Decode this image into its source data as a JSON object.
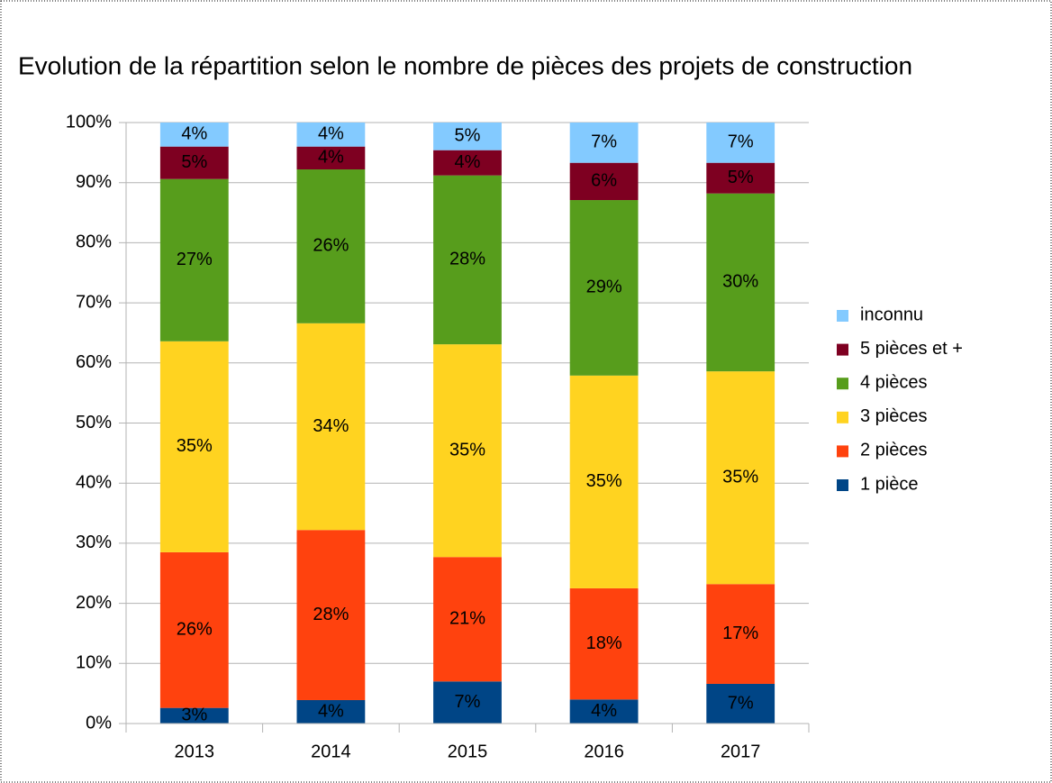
{
  "chart_data": {
    "type": "stacked_bar",
    "title": "Evolution de la répartition selon le nombre de pièces des projets de construction",
    "categories": [
      "2013",
      "2014",
      "2015",
      "2016",
      "2017"
    ],
    "series": [
      {
        "name": "1 pièce",
        "color": "#004586",
        "values": [
          2.6,
          3.9,
          7.0,
          4.0,
          6.6
        ],
        "value_labels": [
          "3%",
          "4%",
          "7%",
          "4%",
          "7%"
        ]
      },
      {
        "name": "2 pièces",
        "color": "#ff420e",
        "values": [
          25.9,
          28.3,
          20.7,
          18.5,
          16.6
        ],
        "value_labels": [
          "26%",
          "28%",
          "21%",
          "18%",
          "17%"
        ]
      },
      {
        "name": "3 pièces",
        "color": "#ffd320",
        "values": [
          35.1,
          34.4,
          35.4,
          35.4,
          35.4
        ],
        "value_labels": [
          "35%",
          "34%",
          "35%",
          "35%",
          "35%"
        ]
      },
      {
        "name": "4 pièces",
        "color": "#579d1c",
        "values": [
          27.0,
          25.6,
          28.1,
          29.2,
          29.6
        ],
        "value_labels": [
          "27%",
          "26%",
          "28%",
          "29%",
          "30%"
        ]
      },
      {
        "name": "5 pièces et +",
        "color": "#7e0021",
        "values": [
          5.4,
          3.8,
          4.2,
          6.2,
          5.1
        ],
        "value_labels": [
          "5%",
          "4%",
          "4%",
          "6%",
          "5%"
        ]
      },
      {
        "name": "inconnu",
        "color": "#83caff",
        "values": [
          4.0,
          4.0,
          4.6,
          6.7,
          6.7
        ],
        "value_labels": [
          "4%",
          "4%",
          "5%",
          "7%",
          "7%"
        ]
      }
    ],
    "ylim": [
      0,
      100
    ],
    "yticks": [
      {
        "value": 0,
        "label": "0%"
      },
      {
        "value": 10,
        "label": "10%"
      },
      {
        "value": 20,
        "label": "20%"
      },
      {
        "value": 30,
        "label": "30%"
      },
      {
        "value": 40,
        "label": "40%"
      },
      {
        "value": 50,
        "label": "50%"
      },
      {
        "value": 60,
        "label": "60%"
      },
      {
        "value": 70,
        "label": "70%"
      },
      {
        "value": 80,
        "label": "80%"
      },
      {
        "value": 90,
        "label": "90%"
      },
      {
        "value": 100,
        "label": "100%"
      }
    ],
    "grid": true,
    "legend": "right"
  }
}
